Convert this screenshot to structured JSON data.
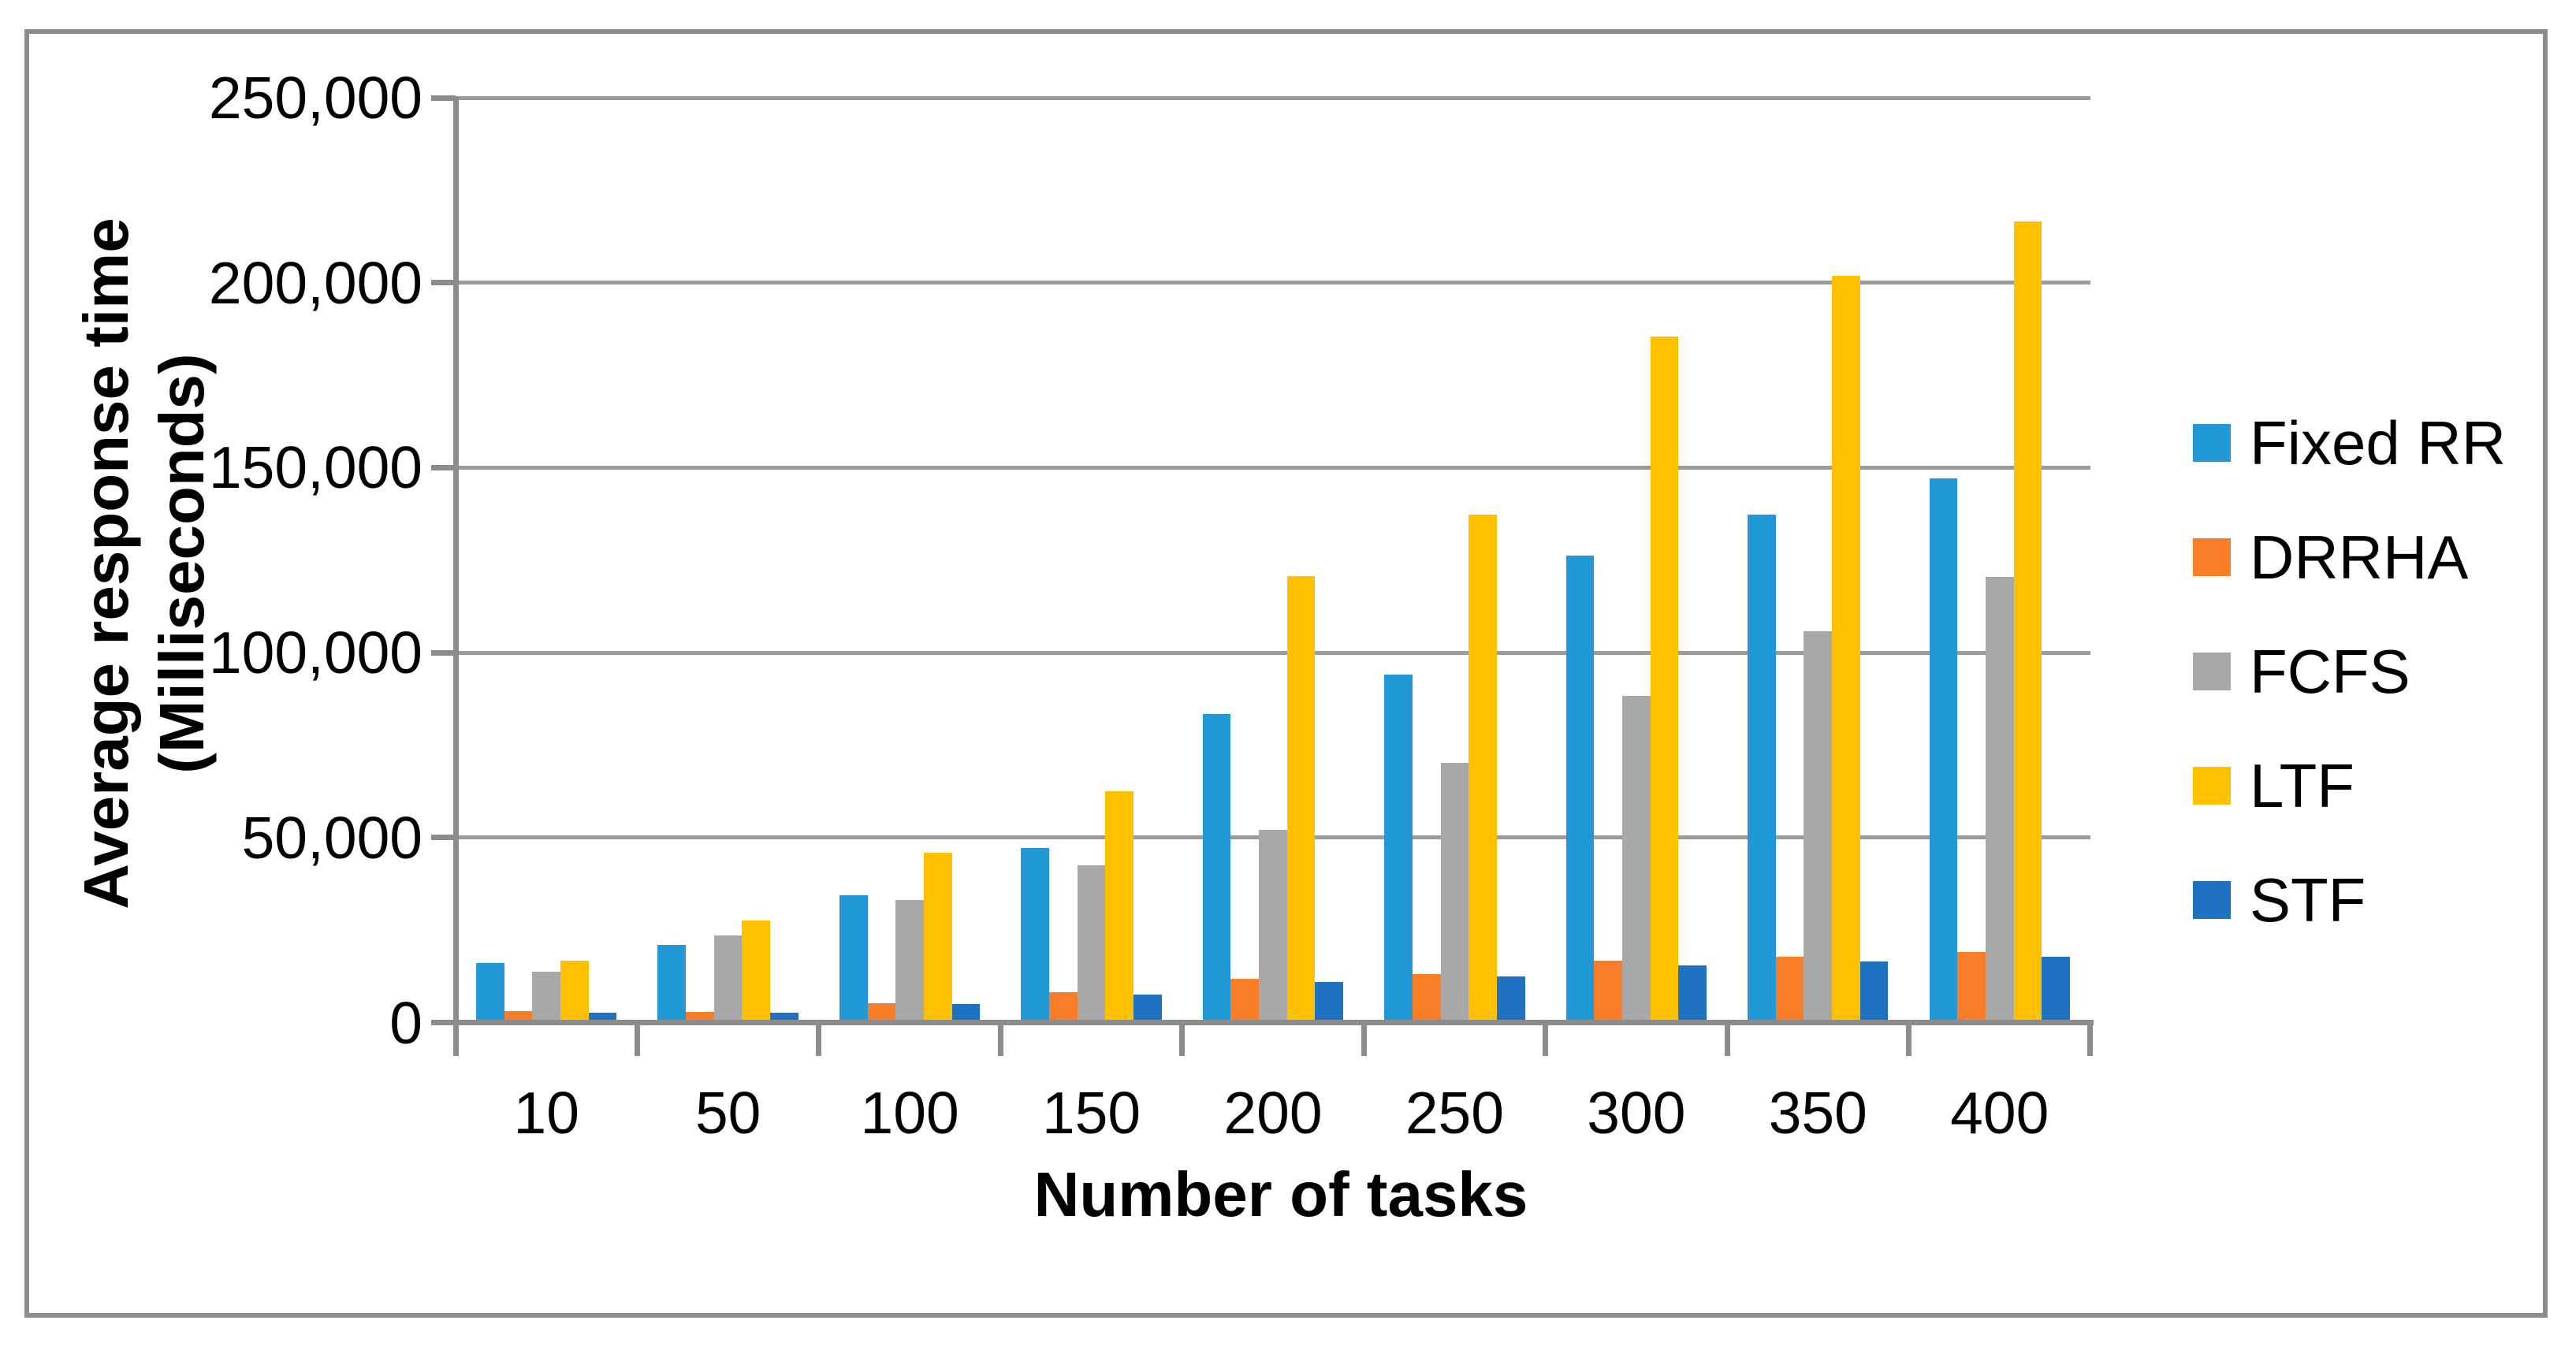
{
  "figure": {
    "background": "#FFFFFF",
    "frame_color": "#8C8C8C"
  },
  "chart_data": {
    "type": "bar",
    "title": "",
    "xlabel": "Number of tasks",
    "ylabel": "Average response time (Milliseconds)",
    "ylabel_line1": "Average response time",
    "ylabel_line2": "(Milliseconds)",
    "categories": [
      "10",
      "50",
      "100",
      "150",
      "200",
      "250",
      "300",
      "350",
      "400"
    ],
    "series": [
      {
        "name": "Fixed RR",
        "color": "#2199D6",
        "values": [
          16000,
          21000,
          34400,
          47200,
          83400,
          94000,
          126300,
          137200,
          147000
        ]
      },
      {
        "name": "DRRHA",
        "color": "#FA7D27",
        "values": [
          3000,
          2900,
          5300,
          8300,
          11900,
          13100,
          16700,
          17800,
          19000
        ]
      },
      {
        "name": "FCFS",
        "color": "#A8A8A8",
        "values": [
          13700,
          23500,
          33200,
          42400,
          52100,
          70200,
          88400,
          105700,
          120400
        ]
      },
      {
        "name": "LTF",
        "color": "#FFC000",
        "values": [
          16800,
          27500,
          46000,
          62500,
          120600,
          137200,
          185400,
          201800,
          216600
        ]
      },
      {
        "name": "STF",
        "color": "#1F72C2",
        "values": [
          2600,
          2600,
          5000,
          7500,
          10900,
          12400,
          15400,
          16600,
          17800
        ]
      }
    ],
    "ylim": [
      0,
      250000
    ],
    "yticks": [
      0,
      50000,
      100000,
      150000,
      200000,
      250000
    ],
    "ytick_labels": [
      "0",
      "50,000",
      "100,000",
      "150,000",
      "200,000",
      "250,000"
    ],
    "grid": "horizontal",
    "legend_position": "right",
    "axis_color": "#8C8C8C",
    "gridline_color": "#9B9B9B",
    "text_color": "#000000"
  }
}
